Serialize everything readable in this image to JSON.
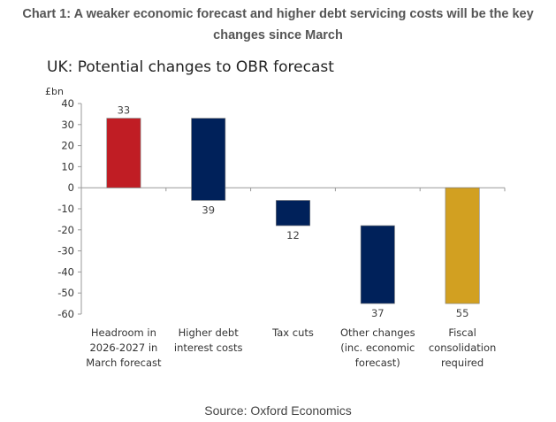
{
  "headline": {
    "line1": "Chart 1: A weaker economic forecast and higher debt servicing costs will be the key",
    "line2": "changes since March"
  },
  "source": "Source: Oxford Economics",
  "chart_data": {
    "type": "bar",
    "subtype": "waterfall",
    "title": "UK: Potential changes to OBR forecast",
    "ylabel": "£bn",
    "xlabel": "",
    "ylim": [
      -60,
      40
    ],
    "yticks": [
      40,
      30,
      20,
      10,
      0,
      -10,
      -20,
      -30,
      -40,
      -50,
      -60
    ],
    "grid": false,
    "legend": "none",
    "categories": [
      [
        "Headroom in",
        "2026-2027 in",
        "March forecast"
      ],
      [
        "Higher debt",
        "interest costs"
      ],
      [
        "Tax cuts"
      ],
      [
        "Other changes",
        "(inc. economic",
        "forecast)"
      ],
      [
        "Fiscal",
        "consolidation",
        "required"
      ]
    ],
    "bars": [
      {
        "label": "33",
        "value": 33,
        "start": 0,
        "end": 33,
        "color": "#c01d24"
      },
      {
        "label": "39",
        "value": -39,
        "start": 33,
        "end": -6,
        "color": "#00215a"
      },
      {
        "label": "12",
        "value": -12,
        "start": -6,
        "end": -18,
        "color": "#00215a"
      },
      {
        "label": "37",
        "value": -37,
        "start": -18,
        "end": -55,
        "color": "#00215a"
      },
      {
        "label": "55",
        "value": -55,
        "start": 0,
        "end": -55,
        "color": "#d2a021"
      }
    ]
  }
}
